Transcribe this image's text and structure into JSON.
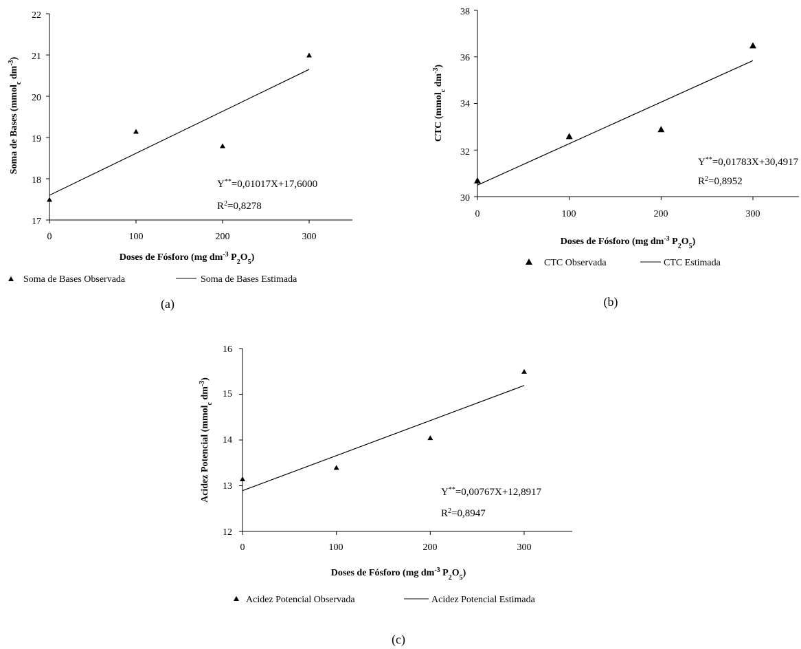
{
  "chart_data": [
    {
      "type": "scatter",
      "panel_label": "(a)",
      "xlabel": "Doses de Fósforo (mg dm",
      "xlabel_sup": "-3",
      "xlabel_p": " P",
      "xlabel_sub1": "2",
      "xlabel_o": "O",
      "xlabel_sub2": "5",
      "xlabel_close": ")",
      "ylabel": "Soma de Bases (mmol",
      "ylabel_sub": "c",
      "ylabel_dm": " dm",
      "ylabel_sup": "-3",
      "ylabel_close": ")",
      "xlim": [
        0,
        350
      ],
      "ylim": [
        17,
        22
      ],
      "xticks": [
        "0",
        "100",
        "200",
        "300"
      ],
      "yticks": [
        "17",
        "18",
        "19",
        "20",
        "21",
        "22"
      ],
      "xtick_values": [
        0,
        100,
        200,
        300
      ],
      "ytick_values": [
        17,
        18,
        19,
        20,
        21,
        22
      ],
      "series": [
        {
          "name": "Soma de Bases Observada",
          "kind": "points",
          "x": [
            0,
            100,
            200,
            300
          ],
          "y": [
            17.5,
            19.15,
            18.8,
            21.0
          ]
        },
        {
          "name": "Soma de Bases Estimada",
          "kind": "line",
          "x": [
            0,
            300
          ],
          "y": [
            17.6,
            20.651
          ]
        }
      ],
      "equation": {
        "y": "Y",
        "sup": "**",
        "rhs": "=0,01017X+17,6000"
      },
      "r2": {
        "r": "R",
        "sup": "2",
        "rhs": "=0,8278"
      }
    },
    {
      "type": "scatter",
      "panel_label": "(b)",
      "xlabel": "Doses de Fósforo (mg dm",
      "xlabel_sup": "-3",
      "xlabel_p": " P",
      "xlabel_sub1": "2",
      "xlabel_o": "O",
      "xlabel_sub2": "5",
      "xlabel_close": ")",
      "ylabel": "CTC (mmol",
      "ylabel_sub": "c",
      "ylabel_dm": " dm",
      "ylabel_sup": "-3",
      "ylabel_close": ")",
      "xlim": [
        0,
        350
      ],
      "ylim": [
        30,
        38
      ],
      "xticks": [
        "0",
        "100",
        "200",
        "300"
      ],
      "yticks": [
        "30",
        "32",
        "34",
        "36",
        "38"
      ],
      "xtick_values": [
        0,
        100,
        200,
        300
      ],
      "ytick_values": [
        30,
        32,
        34,
        36,
        38
      ],
      "series": [
        {
          "name": "CTC Observada",
          "kind": "points",
          "x": [
            0,
            100,
            200,
            300
          ],
          "y": [
            30.7,
            32.6,
            32.9,
            36.5
          ]
        },
        {
          "name": "CTC Estimada",
          "kind": "line",
          "x": [
            0,
            300
          ],
          "y": [
            30.4917,
            35.8407
          ]
        }
      ],
      "equation": {
        "y": "Y",
        "sup": "**",
        "rhs": "=0,01783X+30,4917"
      },
      "r2": {
        "r": "R",
        "sup": "2",
        "rhs": "=0,8952"
      }
    },
    {
      "type": "scatter",
      "panel_label": "(c)",
      "xlabel": "Doses de Fósforo (mg dm",
      "xlabel_sup": "-3",
      "xlabel_p": " P",
      "xlabel_sub1": "2",
      "xlabel_o": "O",
      "xlabel_sub2": "5",
      "xlabel_close": ")",
      "ylabel": "Acidez Potencial (mmol",
      "ylabel_sub": "c",
      "ylabel_dm": " dm",
      "ylabel_sup": "-3",
      "ylabel_close": ")",
      "xlim": [
        0,
        350
      ],
      "ylim": [
        12,
        16
      ],
      "xticks": [
        "0",
        "100",
        "200",
        "300"
      ],
      "yticks": [
        "12",
        "13",
        "14",
        "15",
        "16"
      ],
      "xtick_values": [
        0,
        100,
        200,
        300
      ],
      "ytick_values": [
        12,
        13,
        14,
        15,
        16
      ],
      "series": [
        {
          "name": "Acidez Potencial Observada",
          "kind": "points",
          "x": [
            0,
            100,
            200,
            300
          ],
          "y": [
            13.15,
            13.4,
            14.05,
            15.5
          ]
        },
        {
          "name": "Acidez Potencial Estimada",
          "kind": "line",
          "x": [
            0,
            300
          ],
          "y": [
            12.8917,
            15.1927
          ]
        }
      ],
      "equation": {
        "y": "Y",
        "sup": "**",
        "rhs": "=0,00767X+12,8917"
      },
      "r2": {
        "r": "R",
        "sup": "2",
        "rhs": "=0,8947"
      }
    }
  ]
}
